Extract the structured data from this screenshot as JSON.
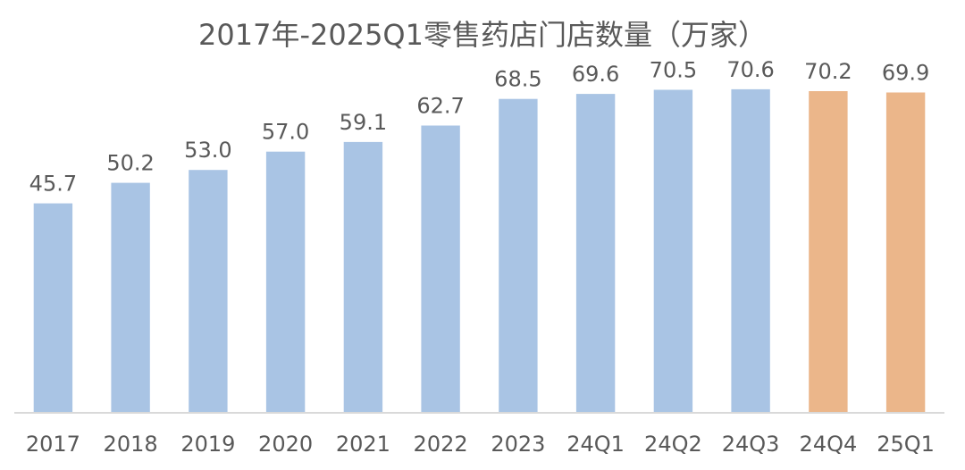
{
  "chart_data": {
    "type": "bar",
    "title": "2017年-2025Q1零售药店门店数量（万家）",
    "categories": [
      "2017",
      "2018",
      "2019",
      "2020",
      "2021",
      "2022",
      "2023",
      "24Q1",
      "24Q2",
      "24Q3",
      "24Q4",
      "25Q1"
    ],
    "values": [
      45.7,
      50.2,
      53.0,
      57.0,
      59.1,
      62.7,
      68.5,
      69.6,
      70.5,
      70.6,
      70.2,
      69.9
    ],
    "value_labels": [
      "45.7",
      "50.2",
      "53.0",
      "57.0",
      "59.1",
      "62.7",
      "68.5",
      "69.6",
      "70.5",
      "70.6",
      "70.2",
      "69.9"
    ],
    "bar_colors": [
      "#a9c4e4",
      "#a9c4e4",
      "#a9c4e4",
      "#a9c4e4",
      "#a9c4e4",
      "#a9c4e4",
      "#a9c4e4",
      "#a9c4e4",
      "#a9c4e4",
      "#a9c4e4",
      "#ebb68a",
      "#ebb68a"
    ],
    "ylim": [
      0,
      78
    ],
    "grid": false,
    "legend": "none",
    "xlabel": "",
    "ylabel": ""
  }
}
